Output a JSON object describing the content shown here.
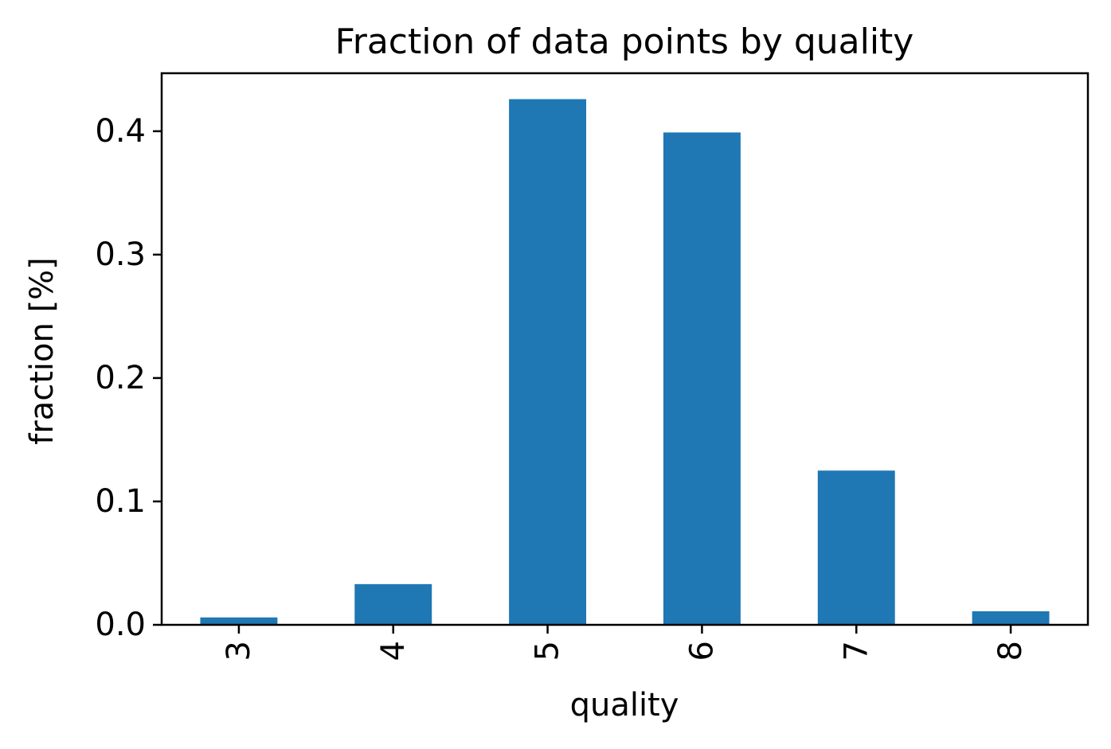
{
  "chart_data": {
    "type": "bar",
    "title": "Fraction of data points by quality",
    "xlabel": "quality",
    "ylabel": "fraction [%]",
    "categories": [
      "3",
      "4",
      "5",
      "6",
      "7",
      "8"
    ],
    "values": [
      0.006,
      0.033,
      0.426,
      0.399,
      0.125,
      0.011
    ],
    "ylim": [
      0,
      0.447
    ],
    "yticks": [
      0.0,
      0.1,
      0.2,
      0.3,
      0.4
    ],
    "ytick_labels": [
      "0.0",
      "0.1",
      "0.2",
      "0.3",
      "0.4"
    ],
    "xtick_rotation": "vertical",
    "grid": false,
    "legend": "none",
    "colors": {
      "bar": "#1f77b4"
    }
  }
}
